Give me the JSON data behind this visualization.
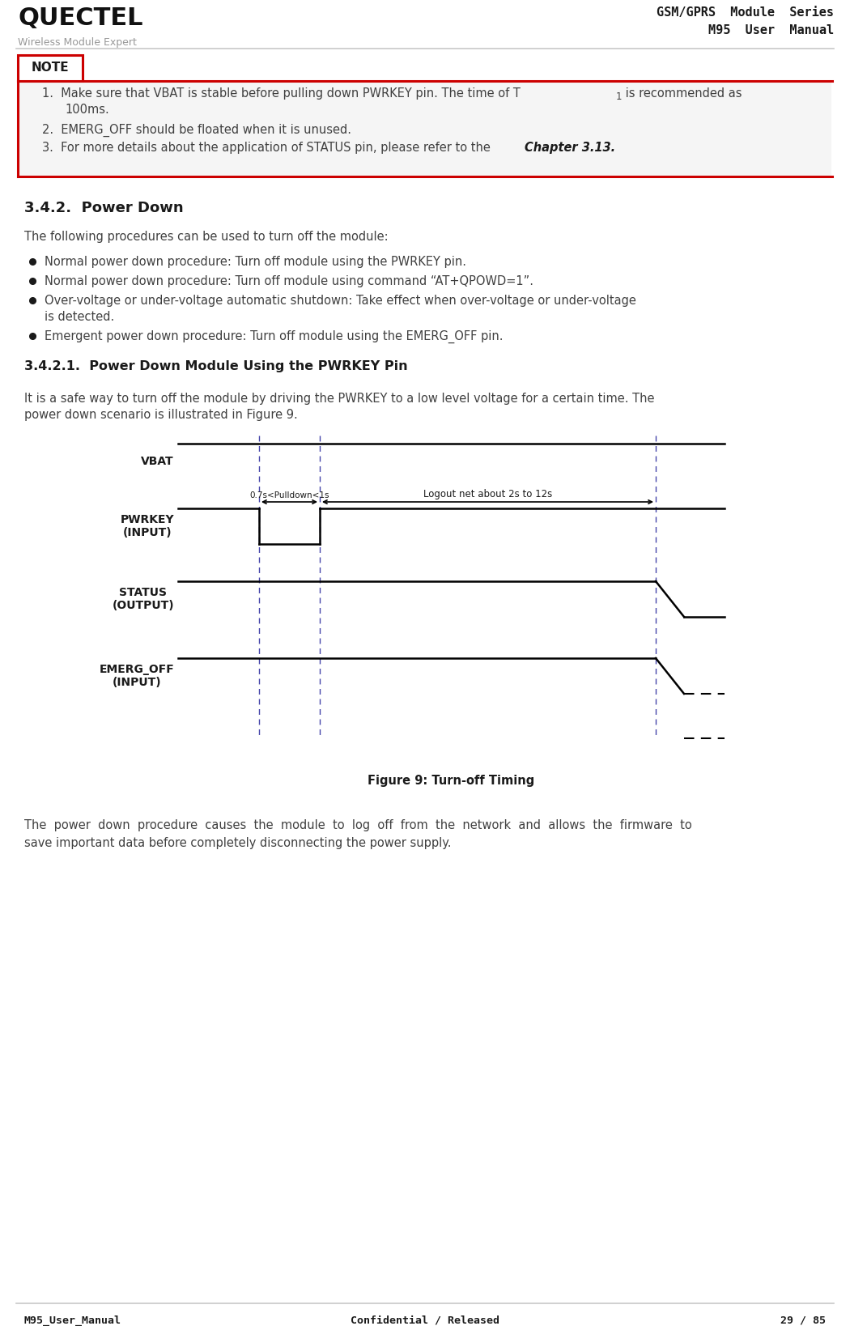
{
  "bg_color": "#ffffff",
  "header_line_color": "#c8c8c8",
  "footer_line_color": "#c8c8c8",
  "header_logo_text": "QUECTEL",
  "header_sub_text": "Wireless Module Expert",
  "header_right_line1": "GSM/GPRS  Module  Series",
  "header_right_line2": "M95  User  Manual",
  "footer_left": "M95_User_Manual",
  "footer_center": "Confidential / Released",
  "footer_right": "29 / 85",
  "note_label": "NOTE",
  "note_border_color": "#cc0000",
  "note_bg_color": "#f5f5f5",
  "section_title": "3.4.2.  Power Down",
  "section_intro": "The following procedures can be used to turn off the module:",
  "subsection_title": "3.4.2.1.  Power Down Module Using the PWRKEY Pin",
  "subsection_line1": "It is a safe way to turn off the module by driving the PWRKEY to a low level voltage for a certain time. The",
  "subsection_line2": "power down scenario is illustrated in Figure 9.",
  "figure_caption": "Figure 9: Turn-off Timing",
  "conclusion_line1": "The  power  down  procedure  causes  the  module  to  log  off  from  the  network  and  allows  the  firmware  to",
  "conclusion_line2": "save important data before completely disconnecting the power supply.",
  "text_color": "#404040",
  "dark_color": "#1a1a1a",
  "timing_dash_color": "#4444aa",
  "signal_line_color": "#000000"
}
